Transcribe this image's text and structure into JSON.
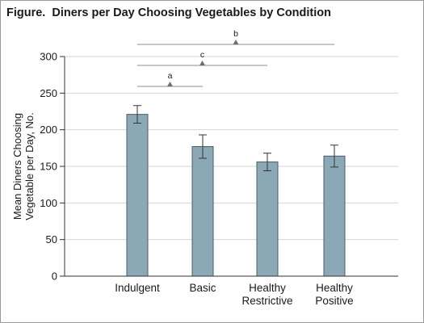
{
  "figure": {
    "label": "Figure.",
    "title": "Diners per Day Choosing Vegetables by Condition"
  },
  "chart_data": {
    "type": "bar",
    "title": "Diners per Day Choosing Vegetables by Condition",
    "xlabel": "",
    "ylabel": "Mean Diners Choosing Vegetable per Day, No.",
    "ylim": [
      0,
      300
    ],
    "yticks": [
      0,
      50,
      100,
      150,
      200,
      250,
      300
    ],
    "grid": true,
    "categories": [
      "Indulgent",
      "Basic",
      "Healthy Restrictive",
      "Healthy Positive"
    ],
    "values": [
      221,
      177,
      156,
      164
    ],
    "error": [
      {
        "lower": 209,
        "upper": 233
      },
      {
        "lower": 161,
        "upper": 193
      },
      {
        "lower": 144,
        "upper": 168
      },
      {
        "lower": 149,
        "upper": 179
      }
    ],
    "significance": [
      {
        "label": "a",
        "from": "Indulgent",
        "to": "Basic"
      },
      {
        "label": "c",
        "from": "Indulgent",
        "to": "Healthy Restrictive"
      },
      {
        "label": "b",
        "from": "Indulgent",
        "to": "Healthy Positive"
      }
    ],
    "colors": {
      "bar": "#8aa8b5",
      "bar_edge": "#4d5c66",
      "grid": "#d4d4d4",
      "bracket": "#8c8c8c",
      "axis": "#333333"
    }
  }
}
